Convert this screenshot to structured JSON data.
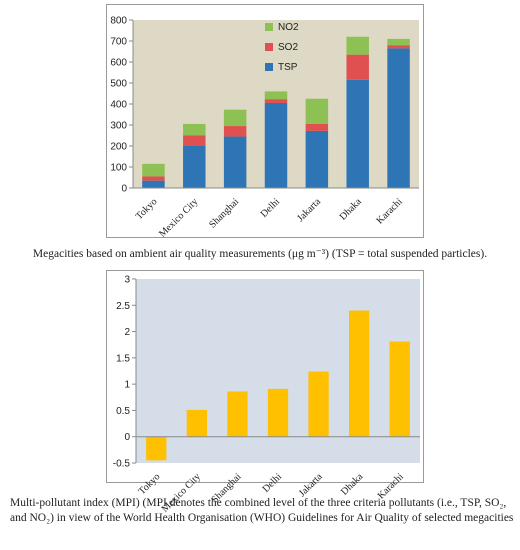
{
  "figures": [
    {
      "caption": "Megacities based on ambient air quality measurements (μg m⁻³) (TSP = total suspended particles).",
      "chart_data": {
        "type": "bar",
        "stacked": true,
        "categories": [
          "Tokyo",
          "Mexico City",
          "Shanghai",
          "Delhi",
          "Jakarta",
          "Dhaka",
          "Karachi"
        ],
        "series": [
          {
            "name": "TSP",
            "color": "#2e75b6",
            "values": [
              35,
              200,
              245,
              405,
              272,
              515,
              665
            ]
          },
          {
            "name": "SO2",
            "color": "#e05050",
            "values": [
              20,
              50,
              50,
              18,
              33,
              120,
              15
            ]
          },
          {
            "name": "NO2",
            "color": "#8dc153",
            "values": [
              60,
              55,
              78,
              37,
              120,
              85,
              30
            ]
          }
        ],
        "ylim": [
          0,
          800
        ],
        "yticks": [
          0,
          100,
          200,
          300,
          400,
          500,
          600,
          700,
          800
        ],
        "grid": false,
        "legend_position": "top-left",
        "plot_background": "#ddd9c4"
      }
    },
    {
      "caption": "Multi-pollutant index (MPI) (MPI denotes the combined level of the three criteria pollutants (i.e., TSP, SO₂, and NO₂) in view of the World Health Organisation (WHO) Guidelines for Air Quality of selected megacities",
      "chart_data": {
        "type": "bar",
        "categories": [
          "Tokyo",
          "Mexico City",
          "Shanghai",
          "Delhi",
          "Jakarta",
          "Dhaka",
          "Karachi"
        ],
        "series": [
          {
            "color": "#ffc000",
            "values": [
              -0.45,
              0.51,
              0.86,
              0.91,
              1.24,
              2.4,
              1.81
            ]
          }
        ],
        "ylim": [
          -0.5,
          3
        ],
        "yticks": [
          -0.5,
          0,
          0.5,
          1,
          1.5,
          2,
          2.5,
          3
        ],
        "grid": false,
        "plot_background": "#d5dde8"
      }
    }
  ]
}
